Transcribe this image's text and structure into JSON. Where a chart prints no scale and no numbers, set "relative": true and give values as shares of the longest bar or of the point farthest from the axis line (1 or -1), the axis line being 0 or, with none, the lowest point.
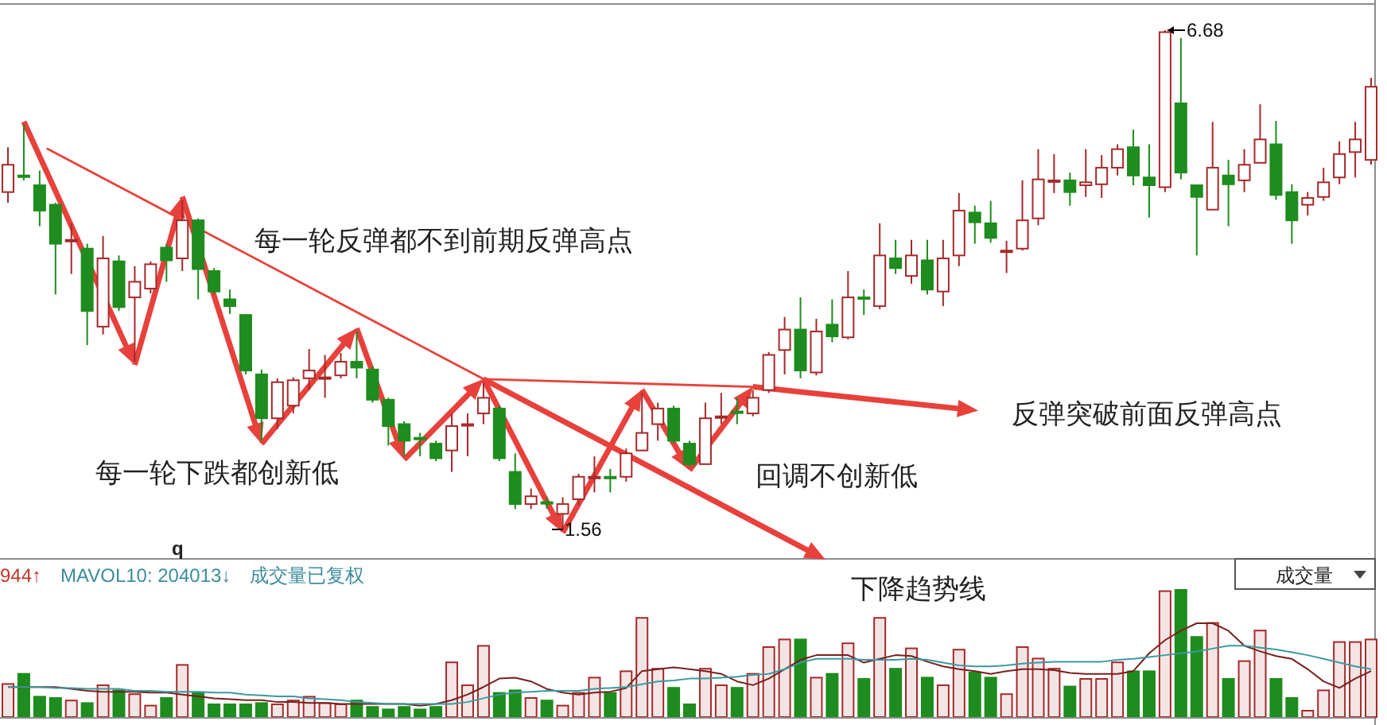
{
  "chart_data": [
    {
      "type": "candlestick",
      "categories": [
        null,
        null,
        null,
        null,
        null,
        null,
        null,
        null,
        null,
        null,
        null,
        null,
        null,
        null,
        null,
        null,
        null,
        null,
        null,
        null,
        null,
        null,
        null,
        null,
        null,
        null,
        null,
        null,
        null,
        null,
        null,
        null,
        null,
        null,
        null,
        null,
        null,
        null,
        null,
        null,
        null,
        null,
        null,
        null,
        null,
        null,
        null,
        null,
        null,
        null,
        null,
        null,
        null,
        null,
        null,
        null,
        null,
        null,
        null,
        null,
        null,
        null,
        null,
        null,
        null,
        null,
        null,
        null,
        null,
        null,
        null,
        null,
        null,
        null,
        null,
        null,
        null,
        null,
        null,
        null,
        null,
        null,
        null,
        null,
        null,
        null,
        null
      ],
      "ohlc": [
        [
          5.02,
          5.48,
          4.91,
          5.3
        ],
        [
          5.19,
          5.71,
          5.14,
          5.18
        ],
        [
          5.09,
          5.24,
          4.67,
          4.83
        ],
        [
          4.89,
          4.91,
          3.97,
          4.49
        ],
        [
          4.53,
          4.7,
          4.18,
          4.53
        ],
        [
          4.44,
          4.49,
          3.45,
          3.8
        ],
        [
          3.64,
          4.57,
          3.56,
          4.34
        ],
        [
          4.31,
          4.37,
          3.8,
          3.84
        ],
        [
          3.94,
          4.26,
          3.28,
          4.1
        ],
        [
          4.03,
          4.31,
          3.98,
          4.28
        ],
        [
          4.45,
          4.49,
          4.1,
          4.32
        ],
        [
          4.34,
          4.94,
          4.21,
          4.73
        ],
        [
          4.73,
          4.75,
          3.92,
          4.23
        ],
        [
          4.21,
          4.24,
          3.97,
          4.0
        ],
        [
          3.92,
          4.02,
          3.77,
          3.85
        ],
        [
          3.76,
          3.77,
          3.15,
          3.19
        ],
        [
          3.15,
          3.2,
          2.47,
          2.7
        ],
        [
          2.7,
          3.11,
          2.59,
          3.07
        ],
        [
          2.83,
          3.12,
          2.75,
          3.09
        ],
        [
          3.11,
          3.41,
          2.99,
          3.19
        ],
        [
          3.12,
          3.35,
          2.91,
          3.12
        ],
        [
          3.14,
          3.37,
          3.11,
          3.28
        ],
        [
          3.28,
          3.59,
          3.11,
          3.22
        ],
        [
          3.2,
          3.24,
          2.86,
          2.89
        ],
        [
          2.89,
          2.91,
          2.42,
          2.62
        ],
        [
          2.64,
          2.67,
          2.31,
          2.47
        ],
        [
          2.5,
          2.55,
          2.31,
          2.49
        ],
        [
          2.44,
          2.47,
          2.26,
          2.29
        ],
        [
          2.37,
          2.75,
          2.15,
          2.62
        ],
        [
          2.64,
          2.75,
          2.31,
          2.64
        ],
        [
          2.75,
          3.07,
          2.64,
          2.91
        ],
        [
          2.8,
          2.83,
          2.26,
          2.29
        ],
        [
          2.15,
          2.34,
          1.77,
          1.82
        ],
        [
          1.82,
          1.98,
          1.77,
          1.9
        ],
        [
          1.84,
          1.89,
          1.77,
          1.83
        ],
        [
          1.72,
          1.89,
          1.56,
          1.82
        ],
        [
          1.87,
          2.13,
          1.81,
          2.1
        ],
        [
          2.1,
          2.31,
          1.94,
          2.1
        ],
        [
          2.1,
          2.18,
          1.94,
          2.09
        ],
        [
          2.1,
          2.39,
          2.05,
          2.34
        ],
        [
          2.37,
          2.96,
          2.37,
          2.55
        ],
        [
          2.64,
          2.86,
          2.47,
          2.8
        ],
        [
          2.8,
          2.83,
          2.44,
          2.47
        ],
        [
          2.44,
          2.47,
          2.2,
          2.23
        ],
        [
          2.23,
          2.86,
          2.23,
          2.7
        ],
        [
          2.72,
          2.96,
          2.64,
          2.72
        ],
        [
          2.77,
          2.91,
          2.64,
          2.76
        ],
        [
          2.75,
          2.99,
          2.72,
          2.91
        ],
        [
          2.99,
          3.38,
          2.96,
          3.35
        ],
        [
          3.4,
          3.74,
          3.15,
          3.61
        ],
        [
          3.61,
          3.94,
          3.11,
          3.19
        ],
        [
          3.17,
          3.72,
          3.14,
          3.59
        ],
        [
          3.66,
          3.92,
          3.48,
          3.54
        ],
        [
          3.53,
          4.21,
          3.51,
          3.94
        ],
        [
          3.94,
          4.02,
          3.76,
          3.93
        ],
        [
          3.85,
          4.7,
          3.82,
          4.37
        ],
        [
          4.34,
          4.53,
          4.18,
          4.24
        ],
        [
          4.16,
          4.53,
          4.08,
          4.37
        ],
        [
          4.32,
          4.53,
          3.97,
          4.02
        ],
        [
          4.0,
          4.53,
          3.85,
          4.34
        ],
        [
          4.37,
          5.01,
          4.26,
          4.83
        ],
        [
          4.81,
          4.88,
          4.49,
          4.71
        ],
        [
          4.7,
          4.93,
          4.5,
          4.55
        ],
        [
          4.42,
          4.52,
          4.19,
          4.42
        ],
        [
          4.44,
          5.14,
          4.42,
          4.73
        ],
        [
          4.75,
          5.46,
          4.68,
          5.15
        ],
        [
          5.14,
          5.41,
          5.01,
          5.14
        ],
        [
          5.14,
          5.22,
          4.88,
          5.02
        ],
        [
          5.09,
          5.46,
          4.97,
          5.12
        ],
        [
          5.1,
          5.4,
          4.96,
          5.27
        ],
        [
          5.27,
          5.51,
          5.19,
          5.46
        ],
        [
          5.48,
          5.66,
          5.09,
          5.19
        ],
        [
          5.17,
          5.51,
          4.76,
          5.09
        ],
        [
          5.07,
          6.68,
          5.02,
          6.66
        ],
        [
          5.93,
          6.6,
          5.15,
          5.22
        ],
        [
          5.09,
          5.09,
          4.37,
          4.97
        ],
        [
          4.84,
          5.74,
          4.84,
          5.27
        ],
        [
          5.19,
          5.35,
          4.67,
          5.1
        ],
        [
          5.14,
          5.46,
          5.02,
          5.3
        ],
        [
          5.32,
          5.92,
          5.32,
          5.56
        ],
        [
          5.51,
          5.75,
          4.94,
          4.99
        ],
        [
          5.02,
          5.1,
          4.49,
          4.73
        ],
        [
          4.89,
          5.02,
          4.78,
          4.96
        ],
        [
          4.97,
          5.27,
          4.93,
          5.12
        ],
        [
          5.17,
          5.54,
          5.1,
          5.41
        ],
        [
          5.43,
          5.74,
          5.17,
          5.56
        ],
        [
          5.35,
          6.19,
          5.3,
          6.1
        ]
      ],
      "colors": [
        "#a52a2a",
        "#1e8c1e",
        "#1e8c1e",
        "#1e8c1e",
        "#a52a2a",
        "#1e8c1e",
        "#a52a2a",
        "#1e8c1e",
        "#a52a2a",
        "#a52a2a",
        "#1e8c1e",
        "#a52a2a",
        "#1e8c1e",
        "#1e8c1e",
        "#1e8c1e",
        "#1e8c1e",
        "#1e8c1e",
        "#a52a2a",
        "#a52a2a",
        "#a52a2a",
        "#a52a2a",
        "#a52a2a",
        "#1e8c1e",
        "#1e8c1e",
        "#1e8c1e",
        "#1e8c1e",
        "#1e8c1e",
        "#1e8c1e",
        "#a52a2a",
        "#a52a2a",
        "#a52a2a",
        "#1e8c1e",
        "#1e8c1e",
        "#a52a2a",
        "#1e8c1e",
        "#a52a2a",
        "#a52a2a",
        "#a52a2a",
        "#1e8c1e",
        "#a52a2a",
        "#a52a2a",
        "#a52a2a",
        "#1e8c1e",
        "#1e8c1e",
        "#a52a2a",
        "#a52a2a",
        "#1e8c1e",
        "#a52a2a",
        "#a52a2a",
        "#a52a2a",
        "#1e8c1e",
        "#a52a2a",
        "#1e8c1e",
        "#a52a2a",
        "#1e8c1e",
        "#a52a2a",
        "#1e8c1e",
        "#a52a2a",
        "#1e8c1e",
        "#a52a2a",
        "#a52a2a",
        "#1e8c1e",
        "#1e8c1e",
        "#a52a2a",
        "#a52a2a",
        "#a52a2a",
        "#a52a2a",
        "#1e8c1e",
        "#a52a2a",
        "#a52a2a",
        "#a52a2a",
        "#1e8c1e",
        "#1e8c1e",
        "#a52a2a",
        "#1e8c1e",
        "#1e8c1e",
        "#a52a2a",
        "#1e8c1e",
        "#a52a2a",
        "#a52a2a",
        "#1e8c1e",
        "#1e8c1e",
        "#a52a2a",
        "#a52a2a",
        "#a52a2a",
        "#a52a2a",
        "#a52a2a"
      ],
      "annotations": [
        "每一轮反弹都不到前期反弹高点",
        "每一轮下跌都创新低",
        "回调不创新低",
        "反弹突破前面反弹高点",
        "下降趋势线",
        "q",
        "6.68",
        "1.56"
      ]
    },
    {
      "type": "bar",
      "relative": true,
      "categories": [
        null,
        null,
        null,
        null,
        null,
        null,
        null,
        null,
        null,
        null,
        null,
        null,
        null,
        null,
        null,
        null,
        null,
        null,
        null,
        null,
        null,
        null,
        null,
        null,
        null,
        null,
        null,
        null,
        null,
        null,
        null,
        null,
        null,
        null,
        null,
        null,
        null,
        null,
        null,
        null,
        null,
        null,
        null,
        null,
        null,
        null,
        null,
        null,
        null,
        null,
        null,
        null,
        null,
        null,
        null,
        null,
        null,
        null,
        null,
        null,
        null,
        null,
        null,
        null,
        null,
        null,
        null,
        null,
        null,
        null,
        null,
        null,
        null,
        null,
        null,
        null,
        null,
        null,
        null,
        null,
        null,
        null,
        null,
        null,
        null,
        null,
        null
      ],
      "values": [
        0.26,
        0.34,
        0.16,
        0.15,
        0.13,
        0.11,
        0.25,
        0.21,
        0.18,
        0.09,
        0.15,
        0.41,
        0.19,
        0.1,
        0.1,
        0.1,
        0.11,
        0.1,
        0.13,
        0.16,
        0.11,
        0.1,
        0.13,
        0.08,
        0.06,
        0.08,
        0.06,
        0.08,
        0.43,
        0.25,
        0.56,
        0.19,
        0.21,
        0.15,
        0.13,
        0.09,
        0.19,
        0.31,
        0.19,
        0.36,
        0.78,
        0.38,
        0.23,
        0.1,
        0.38,
        0.25,
        0.23,
        0.34,
        0.55,
        0.61,
        0.61,
        0.31,
        0.34,
        0.58,
        0.3,
        0.78,
        0.38,
        0.54,
        0.31,
        0.25,
        0.53,
        0.35,
        0.31,
        0.18,
        0.55,
        0.46,
        0.38,
        0.24,
        0.3,
        0.3,
        0.43,
        0.36,
        0.36,
        0.99,
        1,
        0.63,
        0.74,
        0.3,
        0.44,
        0.68,
        0.3,
        0.15,
        0.05,
        0.21,
        0.59,
        0.59,
        0.61
      ],
      "colors": [
        "#a52a2a",
        "#1e8c1e",
        "#1e8c1e",
        "#1e8c1e",
        "#a52a2a",
        "#1e8c1e",
        "#a52a2a",
        "#1e8c1e",
        "#a52a2a",
        "#a52a2a",
        "#1e8c1e",
        "#a52a2a",
        "#1e8c1e",
        "#1e8c1e",
        "#1e8c1e",
        "#1e8c1e",
        "#1e8c1e",
        "#a52a2a",
        "#a52a2a",
        "#a52a2a",
        "#a52a2a",
        "#a52a2a",
        "#1e8c1e",
        "#1e8c1e",
        "#1e8c1e",
        "#1e8c1e",
        "#1e8c1e",
        "#1e8c1e",
        "#a52a2a",
        "#a52a2a",
        "#a52a2a",
        "#1e8c1e",
        "#1e8c1e",
        "#a52a2a",
        "#1e8c1e",
        "#a52a2a",
        "#a52a2a",
        "#a52a2a",
        "#1e8c1e",
        "#a52a2a",
        "#a52a2a",
        "#a52a2a",
        "#1e8c1e",
        "#1e8c1e",
        "#a52a2a",
        "#a52a2a",
        "#1e8c1e",
        "#a52a2a",
        "#a52a2a",
        "#a52a2a",
        "#1e8c1e",
        "#a52a2a",
        "#1e8c1e",
        "#a52a2a",
        "#1e8c1e",
        "#a52a2a",
        "#1e8c1e",
        "#a52a2a",
        "#1e8c1e",
        "#a52a2a",
        "#a52a2a",
        "#1e8c1e",
        "#1e8c1e",
        "#a52a2a",
        "#a52a2a",
        "#a52a2a",
        "#a52a2a",
        "#1e8c1e",
        "#a52a2a",
        "#a52a2a",
        "#a52a2a",
        "#1e8c1e",
        "#1e8c1e",
        "#a52a2a",
        "#1e8c1e",
        "#1e8c1e",
        "#a52a2a",
        "#1e8c1e",
        "#a52a2a",
        "#a52a2a",
        "#1e8c1e",
        "#1e8c1e",
        "#a52a2a",
        "#a52a2a",
        "#a52a2a",
        "#a52a2a",
        "#a52a2a"
      ],
      "annotations": [
        "944↑",
        "MAVOL10: 204013↓",
        "成交量已复权",
        "成交量"
      ]
    },
    {
      "type": "line",
      "relative": true,
      "categories": [
        null,
        null,
        null,
        null,
        null,
        null,
        null,
        null,
        null,
        null,
        null,
        null,
        null,
        null,
        null,
        null,
        null,
        null,
        null,
        null,
        null,
        null,
        null,
        null,
        null,
        null,
        null,
        null,
        null,
        null,
        null,
        null,
        null,
        null,
        null,
        null,
        null,
        null,
        null,
        null,
        null,
        null,
        null,
        null,
        null,
        null,
        null,
        null,
        null,
        null,
        null,
        null,
        null,
        null,
        null,
        null,
        null,
        null,
        null,
        null,
        null,
        null,
        null,
        null,
        null,
        null,
        null,
        null,
        null,
        null,
        null,
        null,
        null,
        null,
        null,
        null,
        null,
        null,
        null,
        null,
        null,
        null,
        null,
        null,
        null,
        null,
        null
      ],
      "series": [
        {
          "color": "#7a1f1f",
          "values": [
            0.32,
            0.32,
            0.32,
            0.32,
            0.3,
            0.28,
            0.27,
            0.27,
            0.27,
            0.26,
            0.26,
            0.24,
            0.22,
            0.2,
            0.19,
            0.18,
            0.18,
            0.16,
            0.16,
            0.15,
            0.15,
            0.14,
            0.14,
            0.14,
            0.14,
            0.14,
            0.12,
            0.14,
            0.18,
            0.24,
            0.32,
            0.41,
            0.42,
            0.38,
            0.3,
            0.26,
            0.24,
            0.26,
            0.27,
            0.31,
            0.49,
            0.51,
            0.53,
            0.51,
            0.49,
            0.46,
            0.38,
            0.34,
            0.41,
            0.51,
            0.61,
            0.66,
            0.66,
            0.66,
            0.58,
            0.62,
            0.66,
            0.65,
            0.59,
            0.54,
            0.51,
            0.49,
            0.46,
            0.49,
            0.51,
            0.51,
            0.5,
            0.47,
            0.46,
            0.46,
            0.46,
            0.49,
            0.68,
            0.82,
            0.92,
            1,
            1,
            0.92,
            0.76,
            0.7,
            0.65,
            0.62,
            0.51,
            0.38,
            0.31,
            0.41,
            0.49
          ]
        },
        {
          "color": "#3b9aa0",
          "values": [
            0.32,
            0.32,
            0.32,
            0.31,
            0.31,
            0.3,
            0.3,
            0.3,
            0.28,
            0.28,
            0.27,
            0.27,
            0.27,
            0.26,
            0.26,
            0.24,
            0.23,
            0.22,
            0.22,
            0.2,
            0.19,
            0.18,
            0.16,
            0.15,
            0.14,
            0.14,
            0.14,
            0.14,
            0.14,
            0.16,
            0.2,
            0.24,
            0.26,
            0.27,
            0.28,
            0.28,
            0.28,
            0.3,
            0.31,
            0.32,
            0.35,
            0.38,
            0.39,
            0.41,
            0.41,
            0.42,
            0.43,
            0.45,
            0.46,
            0.51,
            0.58,
            0.62,
            0.62,
            0.62,
            0.61,
            0.61,
            0.61,
            0.62,
            0.61,
            0.58,
            0.55,
            0.54,
            0.54,
            0.55,
            0.57,
            0.58,
            0.59,
            0.59,
            0.59,
            0.59,
            0.61,
            0.62,
            0.64,
            0.66,
            0.68,
            0.7,
            0.73,
            0.76,
            0.76,
            0.74,
            0.72,
            0.69,
            0.66,
            0.62,
            0.58,
            0.54,
            0.51
          ]
        }
      ]
    }
  ]
}
